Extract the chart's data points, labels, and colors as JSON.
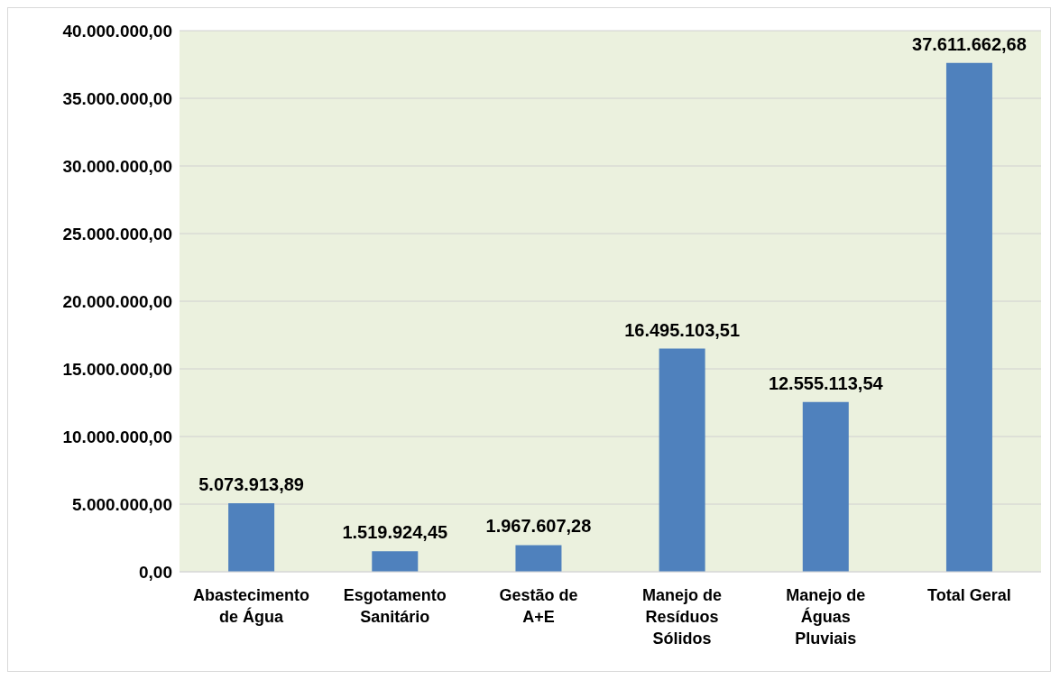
{
  "chart_data": {
    "type": "bar",
    "categories": [
      "Abastecimento de Água",
      "Esgotamento Sanitário",
      "Gestão de A+E",
      "Manejo de Resíduos Sólidos",
      "Manejo de Águas Pluviais",
      "Total Geral"
    ],
    "values": [
      5073913.89,
      1519924.45,
      1967607.28,
      16495103.51,
      12555113.54,
      37611662.68
    ],
    "value_labels": [
      "5.073.913,89",
      "1.519.924,45",
      "1.967.607,28",
      "16.495.103,51",
      "12.555.113,54",
      "37.611.662,68"
    ],
    "color": "#4f81bd",
    "ylim": [
      0,
      40000000
    ],
    "yticks": [
      {
        "value": 0,
        "label": "0,00"
      },
      {
        "value": 5000000,
        "label": "5.000.000,00"
      },
      {
        "value": 10000000,
        "label": "10.000.000,00"
      },
      {
        "value": 15000000,
        "label": "15.000.000,00"
      },
      {
        "value": 20000000,
        "label": "20.000.000,00"
      },
      {
        "value": 25000000,
        "label": "25.000.000,00"
      },
      {
        "value": 30000000,
        "label": "30.000.000,00"
      },
      {
        "value": 35000000,
        "label": "35.000.000,00"
      },
      {
        "value": 40000000,
        "label": "40.000.000,00"
      }
    ],
    "grid": "y"
  }
}
